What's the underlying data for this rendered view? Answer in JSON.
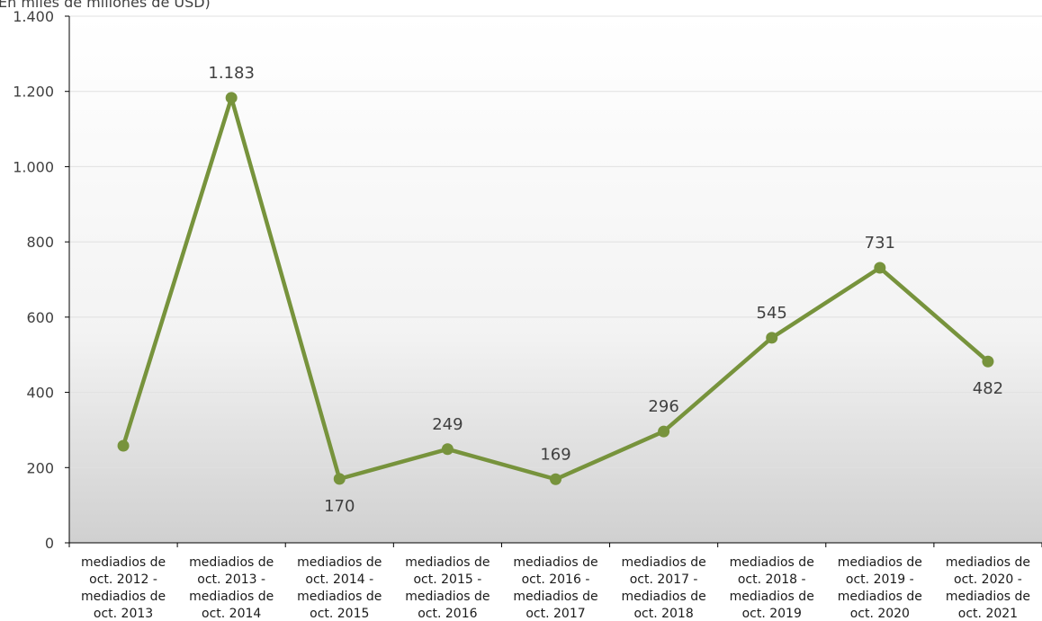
{
  "unit_note": "En miles de millones de USD)",
  "colors": {
    "line": "#77933c",
    "axis": "#000000",
    "grid": "#e0e0e0",
    "text": "#404040"
  },
  "chart_data": {
    "type": "line",
    "title": "",
    "xlabel": "",
    "ylabel": "",
    "ylim": [
      0,
      1400
    ],
    "yticks": [
      0,
      200,
      400,
      600,
      800,
      1000,
      1200,
      1400
    ],
    "ytick_labels": [
      "0",
      "200",
      "400",
      "600",
      "800",
      "1.000",
      "1.200",
      "1.400"
    ],
    "grid": true,
    "legend": "none",
    "categories": [
      [
        "mediadios de",
        "oct. 2012 -",
        "mediadios de",
        "oct. 2013"
      ],
      [
        "mediadios de",
        "oct. 2013 -",
        "mediadios de",
        "oct. 2014"
      ],
      [
        "mediadios de",
        "oct. 2014 -",
        "mediadios de",
        "oct. 2015"
      ],
      [
        "mediadios de",
        "oct. 2015 -",
        "mediadios de",
        "oct. 2016"
      ],
      [
        "mediadios de",
        "oct. 2016 -",
        "mediadios de",
        "oct. 2017"
      ],
      [
        "mediadios de",
        "oct. 2017 -",
        "mediadios de",
        "oct. 2018"
      ],
      [
        "mediadios de",
        "oct. 2018 -",
        "mediadios de",
        "oct. 2019"
      ],
      [
        "mediadios de",
        "oct. 2019 -",
        "mediadios de",
        "oct. 2020"
      ],
      [
        "mediadios de",
        "oct. 2020 -",
        "mediadios de",
        "oct. 2021"
      ]
    ],
    "series": [
      {
        "values": [
          258,
          1183,
          170,
          249,
          169,
          296,
          545,
          731,
          482
        ],
        "labels": [
          "",
          "1.183",
          "170",
          "249",
          "169",
          "296",
          "545",
          "731",
          "482"
        ],
        "label_positions": [
          "above",
          "above",
          "below",
          "above",
          "above",
          "above",
          "above",
          "above",
          "below"
        ]
      }
    ]
  }
}
